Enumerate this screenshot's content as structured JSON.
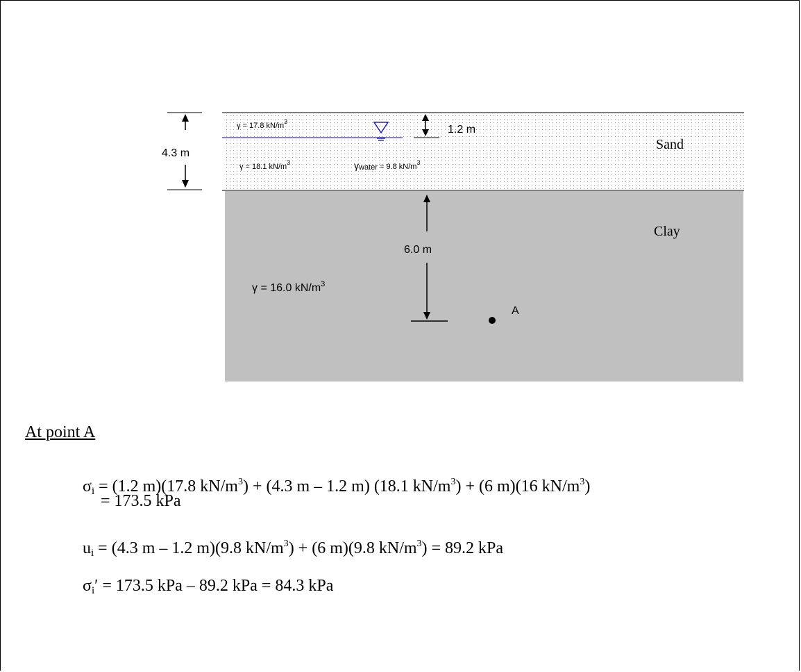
{
  "diagram": {
    "sand_label": "Sand",
    "clay_label": "Clay",
    "total_sand_depth": "4.3 m",
    "wt_depth": "1.2 m",
    "clay_depth_to_A": "6.0 m",
    "point_label": "A",
    "gamma_sand_above": "γ = 17.8 kN/m",
    "gamma_sand_below": "γ = 18.1 kN/m",
    "gamma_water_symbol": "γ",
    "gamma_water_sub": "water",
    "gamma_water_value": " = 9.8  kN/m",
    "gamma_clay": "γ = 16.0 kN/m",
    "cube": "3",
    "colors": {
      "clay_fill": "#c0c0c0",
      "water_line": "#0000cc",
      "sand_dots": "#9a9a9a"
    }
  },
  "calculation": {
    "heading": "At point A",
    "sigma_symbol": "σ",
    "u_symbol": "u",
    "sub_i": "i",
    "prime": "′",
    "sigma_eq_p1": " = (1.2 m)(17.8 kN/m",
    "sigma_eq_p2": ") + (4.3 m – 1.2 m) (18.1 kN/m",
    "sigma_eq_p3": ") + (6 m)(16 kN/m",
    "close_paren": ")",
    "sigma_result": "= 173.5 kPa",
    "u_eq_p1": " = (4.3 m – 1.2 m)(9.8 kN/m",
    "u_eq_p2": ") + (6 m)(9.8 kN/m",
    "u_eq_p3": ") = 89.2 kPa",
    "eff_eq": " = 173.5 kPa – 89.2 kPa = 84.3 kPa",
    "cube": "3"
  }
}
